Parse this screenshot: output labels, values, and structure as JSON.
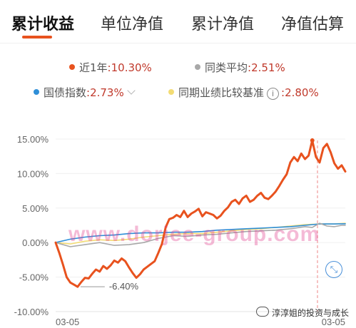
{
  "tabs": [
    {
      "label": "累计收益",
      "active": true
    },
    {
      "label": "单位净值",
      "active": false
    },
    {
      "label": "累计净值",
      "active": false
    },
    {
      "label": "净值估算",
      "active": false
    }
  ],
  "legend": {
    "fund": {
      "label": "近1年",
      "value": ":10.30%",
      "color": "#e8521e"
    },
    "peer_avg": {
      "label": "同类平均",
      "value": ":2.51%",
      "color": "#a8a8a8"
    },
    "gov_bond": {
      "label": "国债指数",
      "value": ":2.73%",
      "color": "#2f8fd8"
    },
    "benchmark": {
      "label": "同期业绩比较基准",
      "value": ":2.80%",
      "color": "#f3dc74"
    }
  },
  "info_icon": "i",
  "watermark": "www.dorjee-group.com",
  "signature": "淳淳姐的投资与成长",
  "chart_data": {
    "type": "line",
    "y_tick_labels": [
      "15.00%",
      "10.00%",
      "5.00%",
      "0.00%",
      "-5.00%",
      "-10.00%"
    ],
    "x_tick_labels": [
      "03-05",
      "03-05"
    ],
    "ylim": [
      -10,
      15
    ],
    "grid": true,
    "min_annotation": "-6.40%",
    "series": [
      {
        "key": "fund",
        "color": "#e8521e",
        "points": [
          [
            0,
            0
          ],
          [
            0.5,
            -1.5
          ],
          [
            1,
            -3.2
          ],
          [
            1.5,
            -5
          ],
          [
            2,
            -5.8
          ],
          [
            2.5,
            -6.1
          ],
          [
            3,
            -6.4
          ],
          [
            3.5,
            -5.7
          ],
          [
            4,
            -5.1
          ],
          [
            4.5,
            -5.2
          ],
          [
            5,
            -4.5
          ],
          [
            5.5,
            -3.9
          ],
          [
            6,
            -4.2
          ],
          [
            6.5,
            -3.4
          ],
          [
            7,
            -3.8
          ],
          [
            7.5,
            -3.3
          ],
          [
            8,
            -2.6
          ],
          [
            8.5,
            -2.9
          ],
          [
            9,
            -2.3
          ],
          [
            9.5,
            -2.7
          ],
          [
            10,
            -3.6
          ],
          [
            10.5,
            -4.4
          ],
          [
            11,
            -5.1
          ],
          [
            11.5,
            -4.6
          ],
          [
            12,
            -3.9
          ],
          [
            12.5,
            -3.5
          ],
          [
            13,
            -3.1
          ],
          [
            13.5,
            -2.7
          ],
          [
            14,
            -1.5
          ],
          [
            14.5,
            -0.2
          ],
          [
            15,
            2.2
          ],
          [
            15.5,
            3.4
          ],
          [
            16,
            3.6
          ],
          [
            16.5,
            4.0
          ],
          [
            17,
            3.7
          ],
          [
            17.5,
            4.6
          ],
          [
            18,
            3.7
          ],
          [
            18.5,
            4.2
          ],
          [
            19,
            4.5
          ],
          [
            19.5,
            4.9
          ],
          [
            20,
            3.8
          ],
          [
            20.5,
            4.4
          ],
          [
            21,
            4.2
          ],
          [
            21.5,
            4.0
          ],
          [
            22,
            3.5
          ],
          [
            22.5,
            3.9
          ],
          [
            23,
            4.6
          ],
          [
            23.5,
            5.1
          ],
          [
            24,
            5.9
          ],
          [
            24.5,
            6.2
          ],
          [
            25,
            5.6
          ],
          [
            25.5,
            6.4
          ],
          [
            26,
            6.8
          ],
          [
            26.5,
            5.9
          ],
          [
            27,
            6.2
          ],
          [
            27.5,
            6.8
          ],
          [
            28,
            7.2
          ],
          [
            28.5,
            6.5
          ],
          [
            29,
            6.3
          ],
          [
            29.5,
            6.8
          ],
          [
            30,
            7.4
          ],
          [
            30.5,
            8.2
          ],
          [
            31,
            9.1
          ],
          [
            31.5,
            9.9
          ],
          [
            32,
            11.6
          ],
          [
            32.5,
            12.4
          ],
          [
            33,
            11.8
          ],
          [
            33.5,
            12.9
          ],
          [
            34,
            12.1
          ],
          [
            34.5,
            12.6
          ],
          [
            35,
            14.8
          ],
          [
            35.5,
            12.4
          ],
          [
            36,
            11.6
          ],
          [
            36.5,
            13.7
          ],
          [
            37,
            14.3
          ],
          [
            37.5,
            13.1
          ],
          [
            38,
            11.5
          ],
          [
            38.5,
            10.7
          ],
          [
            39,
            11.2
          ],
          [
            39.5,
            10.3
          ]
        ]
      },
      {
        "key": "peer_avg",
        "color": "#a8a8a8",
        "points": [
          [
            0,
            0
          ],
          [
            2,
            -0.6
          ],
          [
            4,
            -0.3
          ],
          [
            6,
            0
          ],
          [
            8,
            -0.4
          ],
          [
            10,
            -0.3
          ],
          [
            12,
            0
          ],
          [
            14,
            0.6
          ],
          [
            16,
            1.0
          ],
          [
            18,
            0.9
          ],
          [
            20,
            1.1
          ],
          [
            22,
            1.2
          ],
          [
            24,
            1.4
          ],
          [
            26,
            1.6
          ],
          [
            28,
            1.7
          ],
          [
            30,
            1.8
          ],
          [
            32,
            2.0
          ],
          [
            34,
            2.3
          ],
          [
            35,
            2.2
          ],
          [
            36,
            2.8
          ],
          [
            37,
            2.4
          ],
          [
            38,
            2.3
          ],
          [
            39,
            2.5
          ],
          [
            39.5,
            2.51
          ]
        ]
      },
      {
        "key": "gov_bond",
        "color": "#2f8fd8",
        "points": [
          [
            0,
            0
          ],
          [
            2,
            0.5
          ],
          [
            4,
            0.8
          ],
          [
            6,
            1.0
          ],
          [
            8,
            1.1
          ],
          [
            10,
            1.3
          ],
          [
            12,
            1.4
          ],
          [
            14,
            1.4
          ],
          [
            16,
            1.5
          ],
          [
            18,
            1.5
          ],
          [
            20,
            1.6
          ],
          [
            22,
            1.8
          ],
          [
            24,
            1.9
          ],
          [
            26,
            2.0
          ],
          [
            28,
            2.1
          ],
          [
            30,
            2.2
          ],
          [
            32,
            2.3
          ],
          [
            34,
            2.5
          ],
          [
            36,
            2.7
          ],
          [
            38,
            2.7
          ],
          [
            39.5,
            2.73
          ]
        ]
      },
      {
        "key": "benchmark",
        "color": "#f3dc74",
        "points": [
          [
            0,
            0
          ],
          [
            2,
            -0.2
          ],
          [
            4,
            0.2
          ],
          [
            6,
            0.4
          ],
          [
            8,
            0.3
          ],
          [
            10,
            0.5
          ],
          [
            12,
            0.8
          ],
          [
            14,
            1.0
          ],
          [
            16,
            1.2
          ],
          [
            18,
            1.3
          ],
          [
            20,
            1.3
          ],
          [
            22,
            1.5
          ],
          [
            24,
            1.7
          ],
          [
            26,
            1.9
          ],
          [
            28,
            2.0
          ],
          [
            30,
            2.2
          ],
          [
            32,
            2.4
          ],
          [
            34,
            2.6
          ],
          [
            36,
            2.7
          ],
          [
            38,
            2.7
          ],
          [
            39.5,
            2.8
          ]
        ]
      }
    ]
  }
}
